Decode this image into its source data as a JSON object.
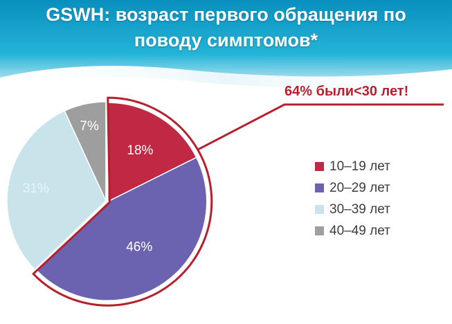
{
  "header": {
    "title_line1": "GSWH: возраст первого обращения по",
    "title_line2": "поводу симптомов*"
  },
  "callout": {
    "text": "64% были<30 лет!",
    "color": "#b5202e"
  },
  "chart_data": {
    "type": "pie",
    "title": "GSWH: возраст первого обращения по поводу симптомов*",
    "categories": [
      "10–19 лет",
      "20–29 лет",
      "30–39 лет",
      "40–49 лет"
    ],
    "values": [
      18,
      46,
      31,
      7
    ],
    "labels": [
      "18%",
      "46%",
      "31%",
      "7%"
    ],
    "colors": [
      "#c02843",
      "#6b63b0",
      "#c8e3ea",
      "#9e9e9e"
    ],
    "highlighted": [
      "10–19 лет",
      "20–29 лет"
    ],
    "legend_position": "right"
  }
}
